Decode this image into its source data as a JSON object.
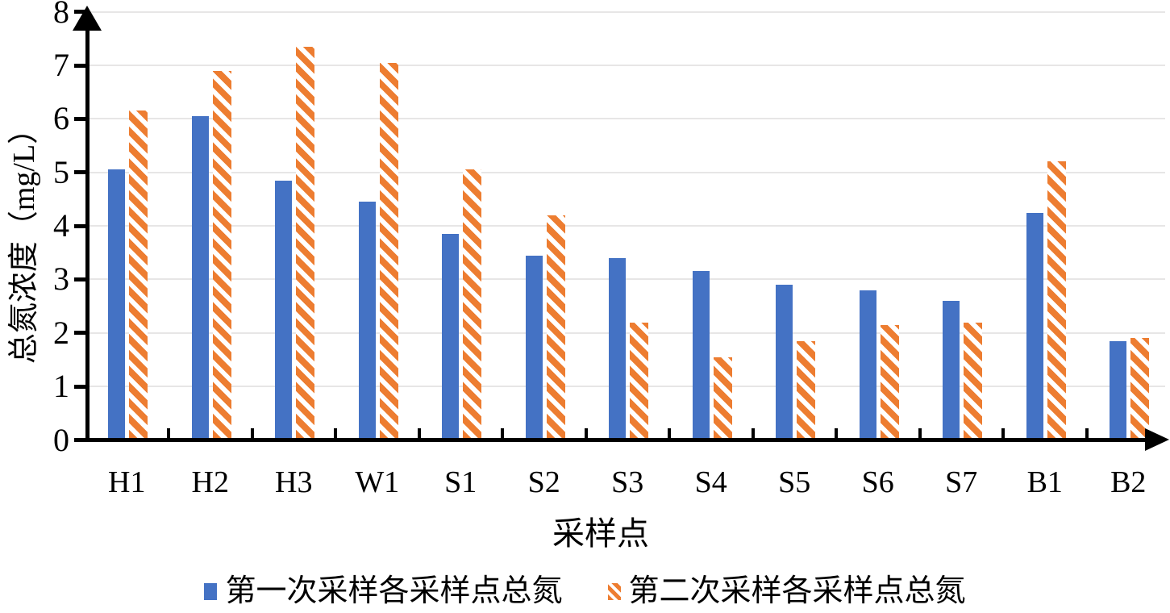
{
  "chart_data": {
    "type": "bar",
    "title": "",
    "xlabel": "采样点",
    "ylabel": "总氮浓度（mg/L）",
    "categories": [
      "H1",
      "H2",
      "H3",
      "W1",
      "S1",
      "S2",
      "S3",
      "S4",
      "S5",
      "S6",
      "S7",
      "B1",
      "B2"
    ],
    "series": [
      {
        "name": "第一次采样各采样点总氮",
        "color": "#4472C4",
        "pattern": "solid",
        "values": [
          5.05,
          6.05,
          4.85,
          4.45,
          3.85,
          3.45,
          3.4,
          3.15,
          2.9,
          2.8,
          2.6,
          4.25,
          1.85
        ]
      },
      {
        "name": "第二次采样各采样点总氮",
        "color": "#ED7D31",
        "pattern": "diagonal-stripes",
        "values": [
          6.15,
          6.9,
          7.35,
          7.05,
          5.05,
          4.2,
          2.2,
          1.55,
          1.85,
          2.15,
          2.2,
          5.2,
          1.9
        ]
      }
    ],
    "ylim": [
      0,
      8
    ],
    "ytick_interval": 1,
    "ytick_labels": [
      "0",
      "1",
      "2",
      "3",
      "4",
      "5",
      "6",
      "7",
      "8"
    ],
    "grid": true,
    "gridline_color": "#e7e6e6",
    "axis_color": "#000000",
    "axis_arrows": true,
    "legend_position": "bottom"
  }
}
